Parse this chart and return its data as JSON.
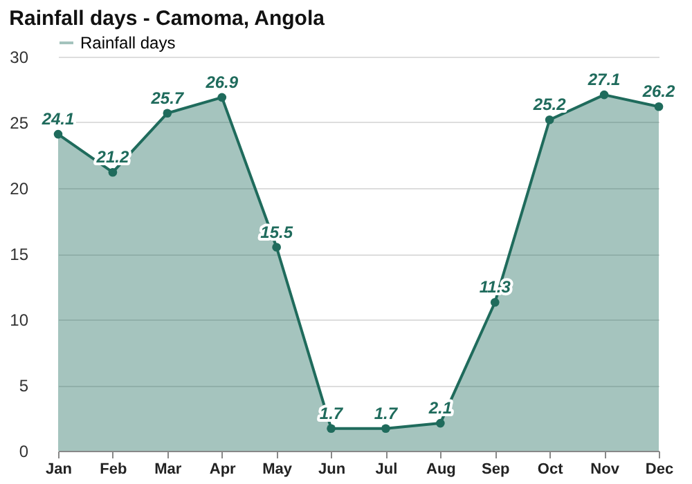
{
  "chart_data": {
    "type": "area",
    "title": "Rainfall days - Camoma, Angola",
    "categories": [
      "Jan",
      "Feb",
      "Mar",
      "Apr",
      "May",
      "Jun",
      "Jul",
      "Aug",
      "Sep",
      "Oct",
      "Nov",
      "Dec"
    ],
    "series": [
      {
        "name": "Rainfall days",
        "color": "#1f6b5c",
        "values": [
          24.1,
          21.2,
          25.7,
          26.9,
          15.5,
          1.7,
          1.7,
          2.1,
          11.3,
          25.2,
          27.1,
          26.2
        ]
      }
    ],
    "ylim": [
      0,
      30
    ],
    "yticks": [
      0,
      5,
      10,
      15,
      20,
      25,
      30
    ],
    "grid": "y",
    "legend": "top left",
    "marker": "circle",
    "data_labels": true
  }
}
